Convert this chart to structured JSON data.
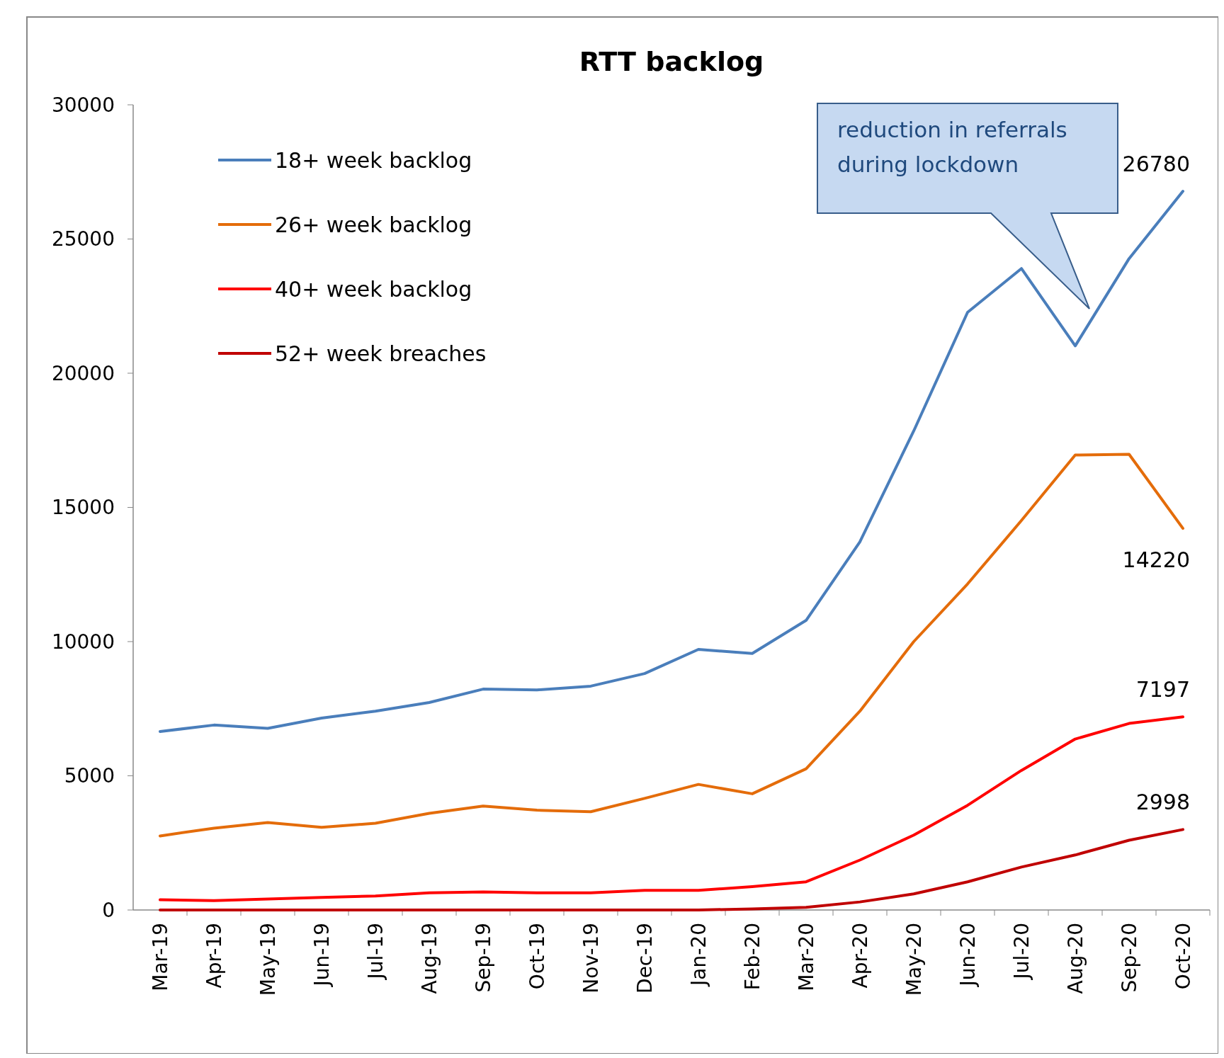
{
  "chart_data": {
    "type": "line",
    "title": "RTT backlog",
    "categories": [
      "Mar-19",
      "Apr-19",
      "May-19",
      "Jun-19",
      "Jul-19",
      "Aug-19",
      "Sep-19",
      "Oct-19",
      "Nov-19",
      "Dec-19",
      "Jan-20",
      "Feb-20",
      "Mar-20",
      "Apr-20",
      "May-20",
      "Jun-20",
      "Jul-20",
      "Aug-20",
      "Sep-20",
      "Oct-20"
    ],
    "series": [
      {
        "name": "18+ week backlog",
        "color": "#4a7ebb",
        "values": [
          6650,
          6890,
          6770,
          7150,
          7410,
          7730,
          8230,
          8200,
          8340,
          8810,
          9710,
          9560,
          10790,
          13720,
          17850,
          22270,
          23900,
          21020,
          24270,
          26780
        ],
        "value_labels": [
          null,
          null,
          null,
          null,
          null,
          null,
          null,
          null,
          null,
          null,
          null,
          null,
          null,
          null,
          null,
          null,
          null,
          null,
          null,
          "26780"
        ]
      },
      {
        "name": "26+ week backlog",
        "color": "#e46c0a",
        "values": [
          2760,
          3050,
          3260,
          3080,
          3230,
          3600,
          3870,
          3720,
          3660,
          4160,
          4680,
          4330,
          5260,
          7410,
          10000,
          12150,
          14510,
          16950,
          16980,
          14220
        ],
        "value_labels": [
          null,
          null,
          null,
          null,
          null,
          null,
          null,
          null,
          null,
          null,
          null,
          null,
          null,
          null,
          null,
          null,
          null,
          null,
          null,
          "14220"
        ]
      },
      {
        "name": "40+ week backlog",
        "color": "#ff0000",
        "values": [
          380,
          350,
          410,
          470,
          520,
          640,
          670,
          640,
          640,
          730,
          730,
          870,
          1050,
          1860,
          2790,
          3900,
          5200,
          6370,
          6950,
          7197
        ],
        "value_labels": [
          null,
          null,
          null,
          null,
          null,
          null,
          null,
          null,
          null,
          null,
          null,
          null,
          null,
          null,
          null,
          null,
          null,
          null,
          null,
          "7197"
        ]
      },
      {
        "name": "52+ week breaches",
        "color": "#c00000",
        "values": [
          0,
          0,
          0,
          0,
          0,
          0,
          0,
          0,
          0,
          0,
          0,
          40,
          100,
          300,
          600,
          1050,
          1600,
          2050,
          2600,
          2998
        ],
        "value_labels": [
          null,
          null,
          null,
          null,
          null,
          null,
          null,
          null,
          null,
          null,
          null,
          null,
          null,
          null,
          null,
          null,
          null,
          null,
          null,
          "2998"
        ]
      }
    ],
    "ylim": [
      0,
      30000
    ],
    "yticks": [
      0,
      5000,
      10000,
      15000,
      20000,
      25000,
      30000
    ],
    "grid": false,
    "legend": "top left",
    "marker": "none",
    "line_style": "solid",
    "annotations": [
      "reduction in referrals during lockdown"
    ]
  }
}
